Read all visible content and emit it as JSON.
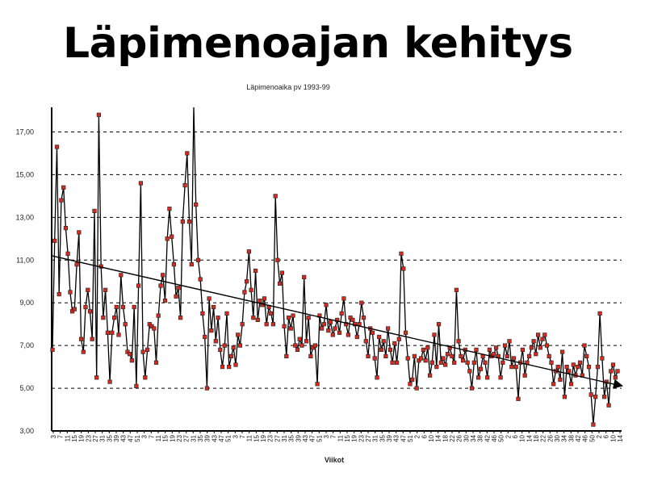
{
  "slide": {
    "title": "Läpimenoajan kehitys"
  },
  "chart_data": {
    "type": "line",
    "title": "Läpimenoaika pv 1993-99",
    "xlabel": "Viikot",
    "ylabel": "",
    "ylim": [
      3,
      18
    ],
    "yticks": [
      3,
      5,
      7,
      9,
      11,
      13,
      15,
      17
    ],
    "ytick_labels": [
      "3,00",
      "5,00",
      "7,00",
      "9,00",
      "11,00",
      "13,00",
      "15,00",
      "17,00"
    ],
    "grid": "horizontal-dashed",
    "x_tick_labels": [
      "3",
      "7",
      "11",
      "15",
      "19",
      "23",
      "27",
      "31",
      "35",
      "39",
      "43",
      "47",
      "51",
      "3",
      "7",
      "11",
      "15",
      "19",
      "23",
      "27",
      "31",
      "35",
      "39",
      "43",
      "47",
      "51",
      "3",
      "7",
      "11",
      "15",
      "19",
      "23",
      "27",
      "31",
      "35",
      "39",
      "43",
      "47",
      "51",
      "3",
      "7",
      "11",
      "15",
      "19",
      "23",
      "27",
      "31",
      "35",
      "39",
      "43",
      "47",
      "51",
      "2",
      "6",
      "10",
      "14",
      "18",
      "22",
      "26",
      "30",
      "34",
      "38",
      "42",
      "46",
      "50",
      "2",
      "6",
      "10",
      "14",
      "18",
      "22",
      "26",
      "30",
      "34",
      "38",
      "42",
      "46",
      "50",
      "2",
      "6",
      "10",
      "14"
    ],
    "series": [
      {
        "values": [
          6.8,
          11.9,
          16.3,
          9.4,
          13.8,
          14.4,
          12.5,
          11.3,
          9.5,
          8.6,
          8.7,
          10.8,
          12.3,
          7.3,
          6.7,
          8.8,
          9.6,
          8.6,
          7.3,
          13.3,
          5.5,
          17.8,
          10.7,
          8.3,
          9.6,
          7.6,
          5.3,
          7.6,
          8.3,
          8.8,
          7.5,
          10.3,
          8.8,
          8.0,
          6.7,
          6.6,
          6.3,
          8.8,
          5.1,
          9.8,
          14.6,
          6.7,
          5.5,
          6.8,
          8.0,
          7.9,
          7.8,
          6.2,
          8.4,
          9.8,
          10.3,
          9.1,
          12.0,
          13.4,
          12.1,
          10.8,
          9.3,
          9.7,
          8.3,
          12.8,
          14.5,
          16.0,
          12.8,
          10.8,
          18.2,
          13.6,
          11.0,
          10.1,
          8.5,
          7.4,
          5.0,
          9.2,
          7.7,
          8.8,
          7.2,
          8.3,
          6.8,
          6.0,
          7.0,
          8.5,
          6.0,
          6.5,
          6.9,
          6.1,
          7.5,
          7.0,
          8.0,
          9.5,
          10.0,
          11.4,
          9.6,
          8.3,
          10.5,
          8.2,
          9.1,
          8.9,
          9.2,
          8.0,
          8.8,
          8.5,
          8.0,
          14.0,
          11.0,
          9.9,
          10.4,
          7.9,
          6.5,
          8.3,
          7.8,
          8.4,
          7.0,
          6.8,
          7.3,
          7.0,
          10.2,
          7.2,
          8.3,
          6.5,
          6.9,
          7.0,
          5.2,
          8.4,
          7.8,
          8.0,
          8.9,
          7.7,
          8.1,
          7.5,
          7.8,
          8.2,
          7.6,
          8.5,
          9.2,
          8.0,
          7.5,
          8.3,
          8.2,
          8.0,
          7.4,
          8.0,
          9.0,
          8.3,
          7.2,
          6.5,
          7.8,
          7.6,
          6.4,
          5.5,
          7.4,
          6.8,
          7.2,
          6.5,
          7.8,
          6.8,
          6.2,
          7.1,
          6.2,
          7.3,
          11.3,
          10.6,
          7.6,
          6.4,
          5.2,
          5.4,
          6.5,
          5.0,
          6.3,
          6.4,
          6.8,
          6.3,
          6.9,
          5.6,
          6.2,
          7.5,
          6.0,
          8.0,
          6.2,
          6.4,
          6.1,
          6.6,
          6.9,
          6.5,
          6.2,
          9.6,
          7.2,
          6.5,
          6.3,
          6.8,
          6.2,
          5.8,
          5.0,
          6.2,
          6.8,
          5.5,
          5.9,
          6.5,
          6.2,
          5.5,
          6.8,
          6.5,
          6.6,
          6.9,
          6.5,
          5.5,
          6.2,
          7.0,
          6.5,
          7.2,
          6.0,
          6.4,
          6.0,
          4.5,
          6.2,
          6.8,
          5.6,
          6.2,
          6.5,
          6.9,
          7.2,
          6.6,
          7.5,
          6.9,
          7.3,
          7.5,
          7.0,
          6.5,
          6.2,
          5.2,
          5.8,
          6.0,
          5.4,
          6.7,
          4.6,
          6.0,
          5.8,
          5.2,
          6.1,
          5.6,
          6.0,
          6.2,
          5.6,
          7.0,
          6.5,
          6.0,
          4.7,
          3.3,
          4.6,
          6.0,
          8.5,
          6.4,
          4.6,
          5.3,
          4.2,
          5.8,
          6.1,
          5.5,
          5.8
        ]
      }
    ],
    "trend": {
      "start": 11.2,
      "end": 5.1,
      "arrow": true
    },
    "marker": "square",
    "colors": {
      "line": "#000000",
      "marker_fill": "#d42a1f",
      "grid": "#000000"
    }
  }
}
